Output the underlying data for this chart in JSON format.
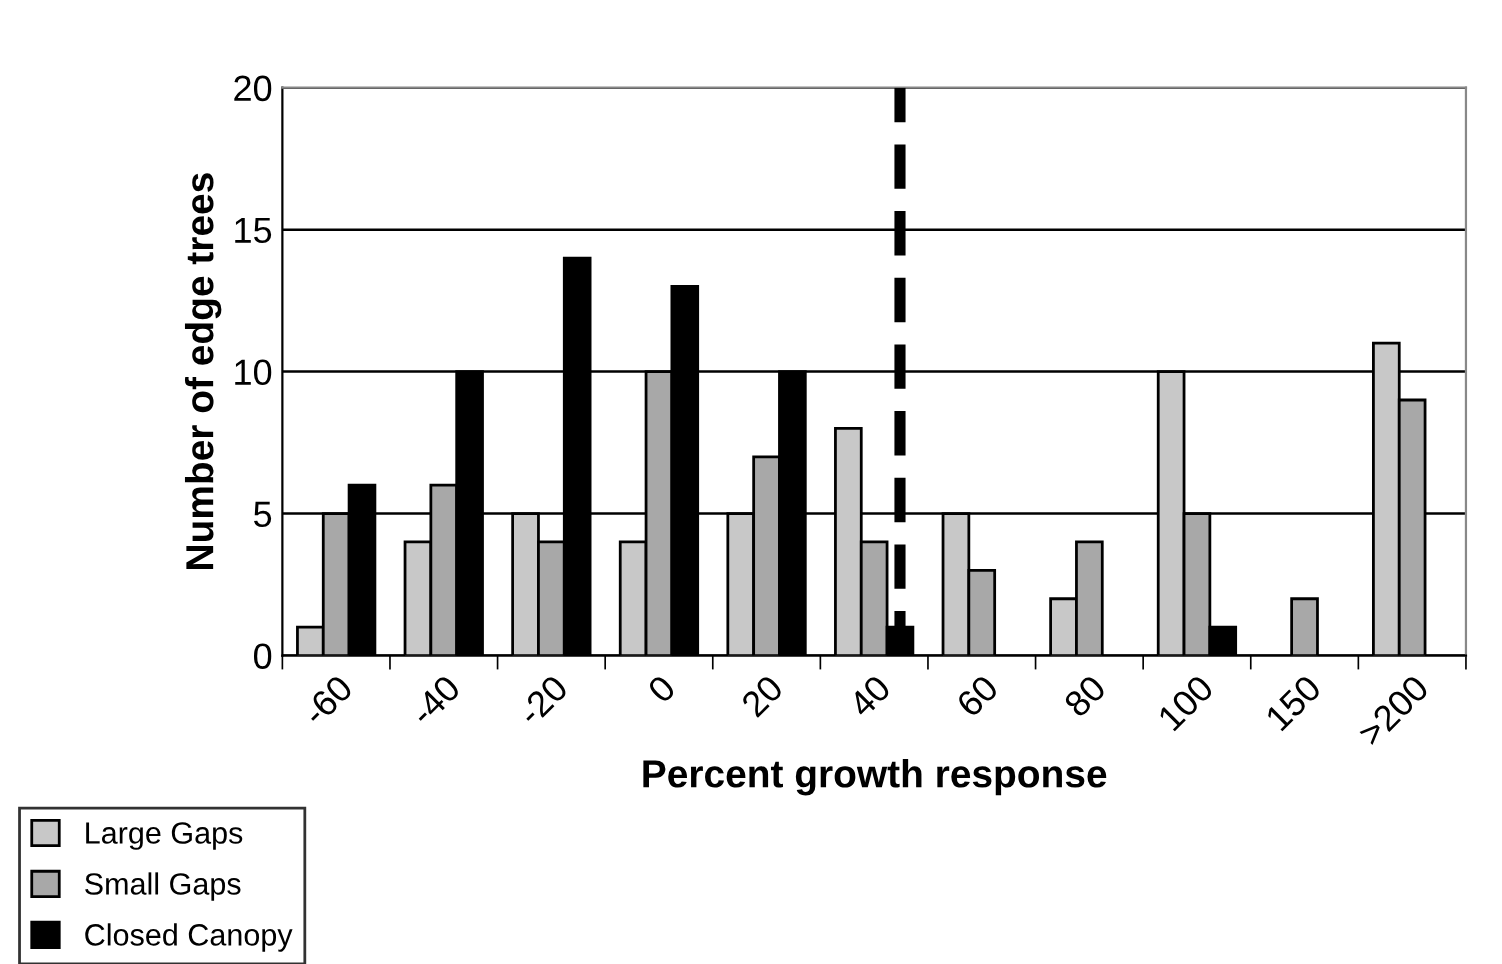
{
  "chart_data": {
    "type": "bar",
    "xlabel": "Percent growth response",
    "ylabel": "Number of edge trees",
    "categories": [
      "-60",
      "-40",
      "-20",
      "0",
      "20",
      "40",
      "60",
      "80",
      "100",
      "150",
      ">200"
    ],
    "series": [
      {
        "name": "Large Gaps",
        "color": "#c8c8c8",
        "values": [
          1,
          4,
          5,
          4,
          5,
          8,
          5,
          2,
          10,
          0,
          11
        ]
      },
      {
        "name": "Small Gaps",
        "color": "#a8a8a8",
        "values": [
          5,
          6,
          4,
          10,
          7,
          4,
          3,
          4,
          5,
          2,
          9
        ]
      },
      {
        "name": "Closed Canopy",
        "color": "#000000",
        "values": [
          6,
          10,
          14,
          13,
          10,
          1,
          0,
          0,
          1,
          0,
          0
        ]
      }
    ],
    "ylim": [
      0,
      20
    ],
    "yticks": [
      0,
      5,
      10,
      15,
      20
    ],
    "grid": "y",
    "legend": "bottom left",
    "ref_lines": [
      {
        "axis": "x",
        "value": "40",
        "color": "#000000",
        "line_style": "dashed"
      }
    ]
  }
}
